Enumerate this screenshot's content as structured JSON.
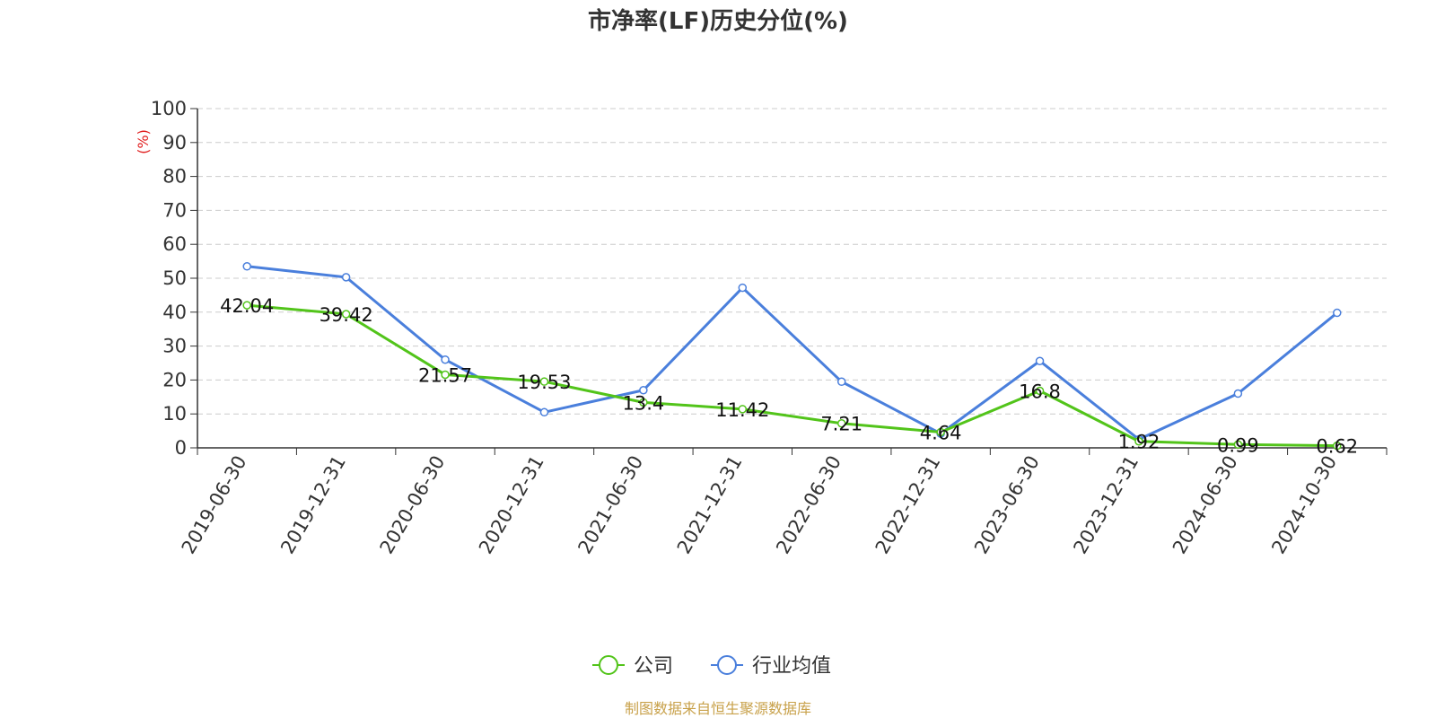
{
  "source_note": "制图数据来自恒生聚源数据库",
  "chart_data": {
    "type": "line",
    "title": "市净率(LF)历史分位(%)",
    "ylabel": "(%)",
    "xlabel": "",
    "ylim": [
      0,
      100
    ],
    "yticks": [
      0,
      10,
      20,
      30,
      40,
      50,
      60,
      70,
      80,
      90,
      100
    ],
    "grid": true,
    "legend_position": "bottom-center",
    "categories": [
      "2019-06-30",
      "2019-12-31",
      "2020-06-30",
      "2020-12-31",
      "2021-06-30",
      "2021-12-31",
      "2022-06-30",
      "2022-12-31",
      "2023-06-30",
      "2023-12-31",
      "2024-06-30",
      "2024-10-30"
    ],
    "series": [
      {
        "name": "公司",
        "color": "#52c41a",
        "show_labels": true,
        "values": [
          42.04,
          39.42,
          21.57,
          19.53,
          13.4,
          11.42,
          7.21,
          4.64,
          16.8,
          1.92,
          0.99,
          0.62
        ]
      },
      {
        "name": "行业均值",
        "color": "#4a7fdc",
        "show_labels": false,
        "values": [
          53.5,
          50.3,
          26,
          10.5,
          17,
          47.2,
          19.5,
          4.2,
          25.6,
          2.5,
          16,
          39.8
        ]
      }
    ]
  }
}
